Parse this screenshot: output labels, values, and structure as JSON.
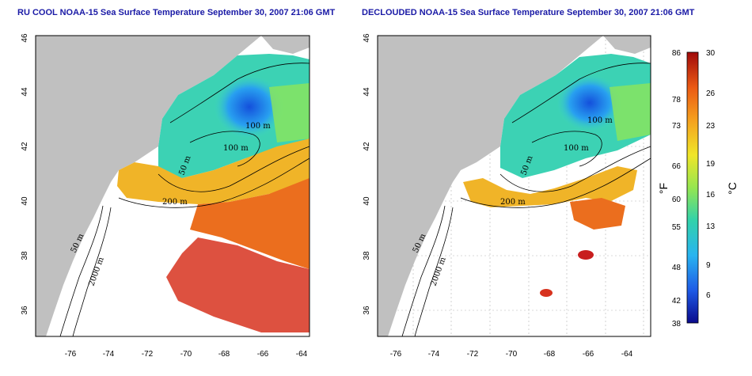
{
  "titles": {
    "left": "RU COOL NOAA-15 Sea Surface Temperature September 30, 2007 21:06 GMT",
    "right": "DECLOUDED NOAA-15 Sea Surface Temperature September 30, 2007 21:06 GMT"
  },
  "axes": {
    "x_ticks": [
      "-76",
      "-74",
      "-72",
      "-70",
      "-68",
      "-66",
      "-64"
    ],
    "y_ticks": [
      "36",
      "38",
      "40",
      "42",
      "44",
      "46"
    ]
  },
  "contours": {
    "left": [
      "100 m",
      "100 m",
      "50 m",
      "200 m",
      "50 m",
      "2000 m"
    ],
    "right": [
      "100 m",
      "100 m",
      "50 m",
      "200 m",
      "50 m",
      "2000 m"
    ]
  },
  "colorbar": {
    "fahrenheit": [
      "86",
      "78",
      "73",
      "66",
      "60",
      "55",
      "48",
      "42",
      "38"
    ],
    "celsius": [
      "30",
      "26",
      "23",
      "19",
      "16",
      "13",
      "9",
      "6"
    ],
    "unit_f": "°F",
    "unit_c": "°C"
  },
  "colors": {
    "land": "#c0c0c0",
    "title": "#1a1aa6",
    "scale": [
      "#0a0a8c",
      "#1e5ae6",
      "#28b4f0",
      "#32d2aa",
      "#96e650",
      "#f0e628",
      "#f5a01e",
      "#eb5a14",
      "#c81414",
      "#a00a0a"
    ]
  }
}
